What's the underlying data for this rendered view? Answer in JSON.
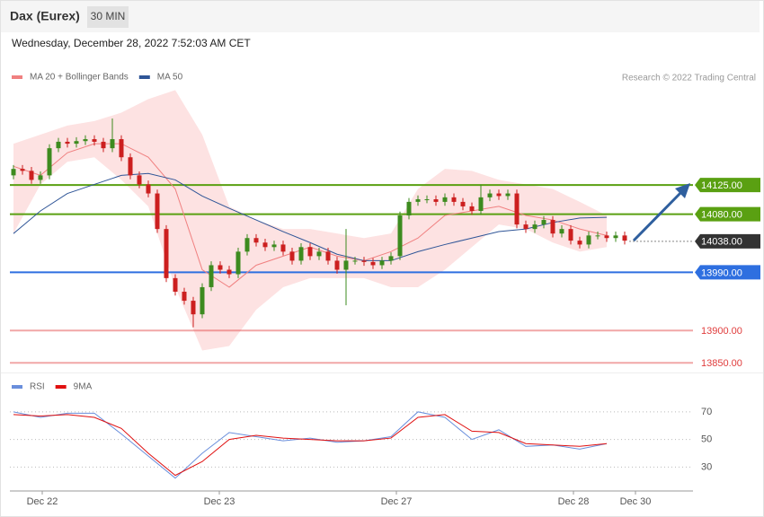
{
  "chart_data": [
    {
      "type": "candlestick",
      "title": "Dax (Eurex)",
      "timeframe": "30 MIN",
      "subtitle": "Wednesday, December 28, 2022 7:52:03 AM CET",
      "source": "Research © 2022 Trading Central",
      "up_color": "#3d8b1f",
      "down_color": "#cc1f1f",
      "open": [
        14140,
        14150,
        14147,
        14133,
        14140,
        14182,
        14192,
        14189,
        14193,
        14196,
        14192,
        14182,
        14196,
        14168,
        14140,
        14126,
        14112,
        14057,
        13981,
        13960,
        13946,
        13925,
        13967,
        14001,
        13994,
        13987,
        14022,
        14043,
        14036,
        14029,
        14033,
        14022,
        14008,
        14029,
        14015,
        14022,
        14008,
        13994,
        14008,
        14008,
        14006,
        14001,
        14008,
        14015,
        14078,
        14099,
        14103,
        14103,
        14099,
        14106,
        14099,
        14092,
        14085,
        14106,
        14112,
        14108,
        14112,
        14064,
        14057,
        14064,
        14071,
        14050,
        14057,
        14039,
        14033,
        14047,
        14047,
        14043,
        14047
      ],
      "high": [
        14156,
        14156,
        14153,
        14146,
        14188,
        14198,
        14198,
        14199,
        14202,
        14202,
        14198,
        14228,
        14202,
        14174,
        14146,
        14132,
        14118,
        14063,
        13987,
        13966,
        13952,
        13973,
        14007,
        14007,
        14000,
        14028,
        14049,
        14049,
        14042,
        14039,
        14039,
        14028,
        14035,
        14035,
        14028,
        14028,
        14014,
        14057,
        14014,
        14014,
        14012,
        14014,
        14021,
        14084,
        14105,
        14109,
        14109,
        14109,
        14112,
        14112,
        14105,
        14098,
        14126,
        14118,
        14118,
        14118,
        14118,
        14070,
        14070,
        14077,
        14077,
        14063,
        14063,
        14045,
        14053,
        14053,
        14053,
        14053,
        14053
      ],
      "low": [
        14134,
        14141,
        14127,
        14127,
        14134,
        14176,
        14183,
        14183,
        14187,
        14186,
        14176,
        14176,
        14162,
        14134,
        14120,
        14106,
        14051,
        13975,
        13954,
        13940,
        13905,
        13919,
        13961,
        13988,
        13981,
        13981,
        14016,
        14030,
        14023,
        14023,
        14016,
        14002,
        14002,
        14009,
        14009,
        14002,
        13988,
        13939,
        14002,
        14000,
        13995,
        13995,
        14002,
        14009,
        14072,
        14093,
        14097,
        14093,
        14093,
        14093,
        14086,
        14079,
        14079,
        14100,
        14102,
        14102,
        14058,
        14051,
        14051,
        14058,
        14044,
        14044,
        14033,
        14027,
        14027,
        14041,
        14037,
        14037,
        14033
      ],
      "close": [
        14150,
        14147,
        14133,
        14140,
        14182,
        14192,
        14189,
        14193,
        14196,
        14192,
        14182,
        14196,
        14168,
        14140,
        14126,
        14112,
        14057,
        13981,
        13960,
        13946,
        13925,
        13967,
        14001,
        13994,
        13987,
        14022,
        14043,
        14036,
        14029,
        14033,
        14022,
        14008,
        14029,
        14015,
        14022,
        14008,
        13994,
        14008,
        14008,
        14006,
        14001,
        14008,
        14015,
        14078,
        14099,
        14103,
        14103,
        14099,
        14106,
        14099,
        14092,
        14085,
        14106,
        14112,
        14108,
        14112,
        14064,
        14057,
        14064,
        14071,
        14050,
        14057,
        14039,
        14033,
        14047,
        14047,
        14043,
        14047,
        14039
      ],
      "overlays": [
        {
          "name": "MA 20 + Bollinger Bands",
          "color": "#f08080",
          "band_color": "#fde2e2",
          "x": [
            0,
            3,
            6,
            9,
            12,
            15,
            18,
            21,
            24,
            27,
            30,
            33,
            36,
            39,
            42,
            45,
            48,
            51,
            54,
            57,
            60,
            63,
            66
          ],
          "values": [
            14154,
            14140,
            14175,
            14189,
            14189,
            14168,
            14119,
            13994,
            13967,
            14001,
            14015,
            14029,
            14015,
            14008,
            14022,
            14043,
            14078,
            14085,
            14092,
            14078,
            14071,
            14057,
            14047
          ],
          "upper": [
            14189,
            14203,
            14217,
            14224,
            14237,
            14258,
            14272,
            14203,
            14092,
            14071,
            14057,
            14057,
            14050,
            14043,
            14050,
            14119,
            14150,
            14147,
            14133,
            14126,
            14119,
            14099,
            14078
          ],
          "lower": [
            14050,
            14126,
            14161,
            14168,
            14133,
            14092,
            13967,
            13869,
            13876,
            13932,
            13967,
            13981,
            13981,
            13981,
            13967,
            13967,
            13994,
            14029,
            14064,
            14057,
            14036,
            14022,
            14029
          ]
        },
        {
          "name": "MA 50",
          "color": "#2f5597",
          "x": [
            0,
            3,
            6,
            9,
            12,
            15,
            18,
            21,
            24,
            27,
            30,
            33,
            36,
            39,
            42,
            45,
            48,
            51,
            54,
            57,
            60,
            63,
            66
          ],
          "values": [
            14050,
            14085,
            14112,
            14126,
            14140,
            14143,
            14133,
            14108,
            14089,
            14071,
            14053,
            14036,
            14018,
            14008,
            14008,
            14022,
            14033,
            14043,
            14053,
            14057,
            14067,
            14074,
            14075
          ]
        }
      ],
      "levels": [
        {
          "value": 14125,
          "label": "14125.00",
          "color": "#5aa012",
          "style": "box"
        },
        {
          "value": 14080,
          "label": "14080.00",
          "color": "#5aa012",
          "style": "box"
        },
        {
          "value": 14038,
          "label": "14038.00",
          "color": "#333333",
          "style": "box",
          "dashed": true
        },
        {
          "value": 13990,
          "label": "13990.00",
          "color": "#2e6fe0",
          "style": "box"
        },
        {
          "value": 13900,
          "label": "13900.00",
          "color": "#e03c3c",
          "style": "text"
        },
        {
          "value": 13850,
          "label": "13850.00",
          "color": "#e03c3c",
          "style": "text"
        }
      ],
      "xlim": [
        -0.4,
        75.6
      ],
      "ylim": [
        13835,
        14328
      ]
    },
    {
      "type": "line",
      "x": [
        0,
        3,
        6,
        9,
        12,
        15,
        18,
        21,
        24,
        27,
        30,
        33,
        36,
        39,
        42,
        45,
        48,
        51,
        54,
        57,
        60,
        63,
        66
      ],
      "series": [
        {
          "name": "RSI",
          "color": "#6a8fdc",
          "values": [
            70,
            66,
            69,
            69,
            54,
            38,
            22,
            40,
            55,
            52,
            49,
            51,
            48,
            49,
            52,
            70,
            66,
            50,
            57,
            45,
            46,
            43,
            47
          ]
        },
        {
          "name": "9MA",
          "color": "#e01010",
          "values": [
            68,
            67,
            68,
            66,
            58,
            40,
            24,
            34,
            50,
            53,
            51,
            50,
            49,
            49,
            51,
            66,
            68,
            56,
            55,
            47,
            46,
            45,
            47
          ]
        }
      ],
      "xlim": [
        -0.4,
        75.6
      ],
      "ylim": [
        14,
        79
      ],
      "yticks": [
        30,
        50,
        70
      ],
      "xticks": [
        {
          "value": 3.2,
          "label": "Dec 22"
        },
        {
          "value": 22.9,
          "label": "Dec 23"
        },
        {
          "value": 42.6,
          "label": "Dec 27"
        },
        {
          "value": 62.3,
          "label": "Dec 28"
        },
        {
          "value": 69.2,
          "label": "Dec 30"
        }
      ]
    }
  ]
}
